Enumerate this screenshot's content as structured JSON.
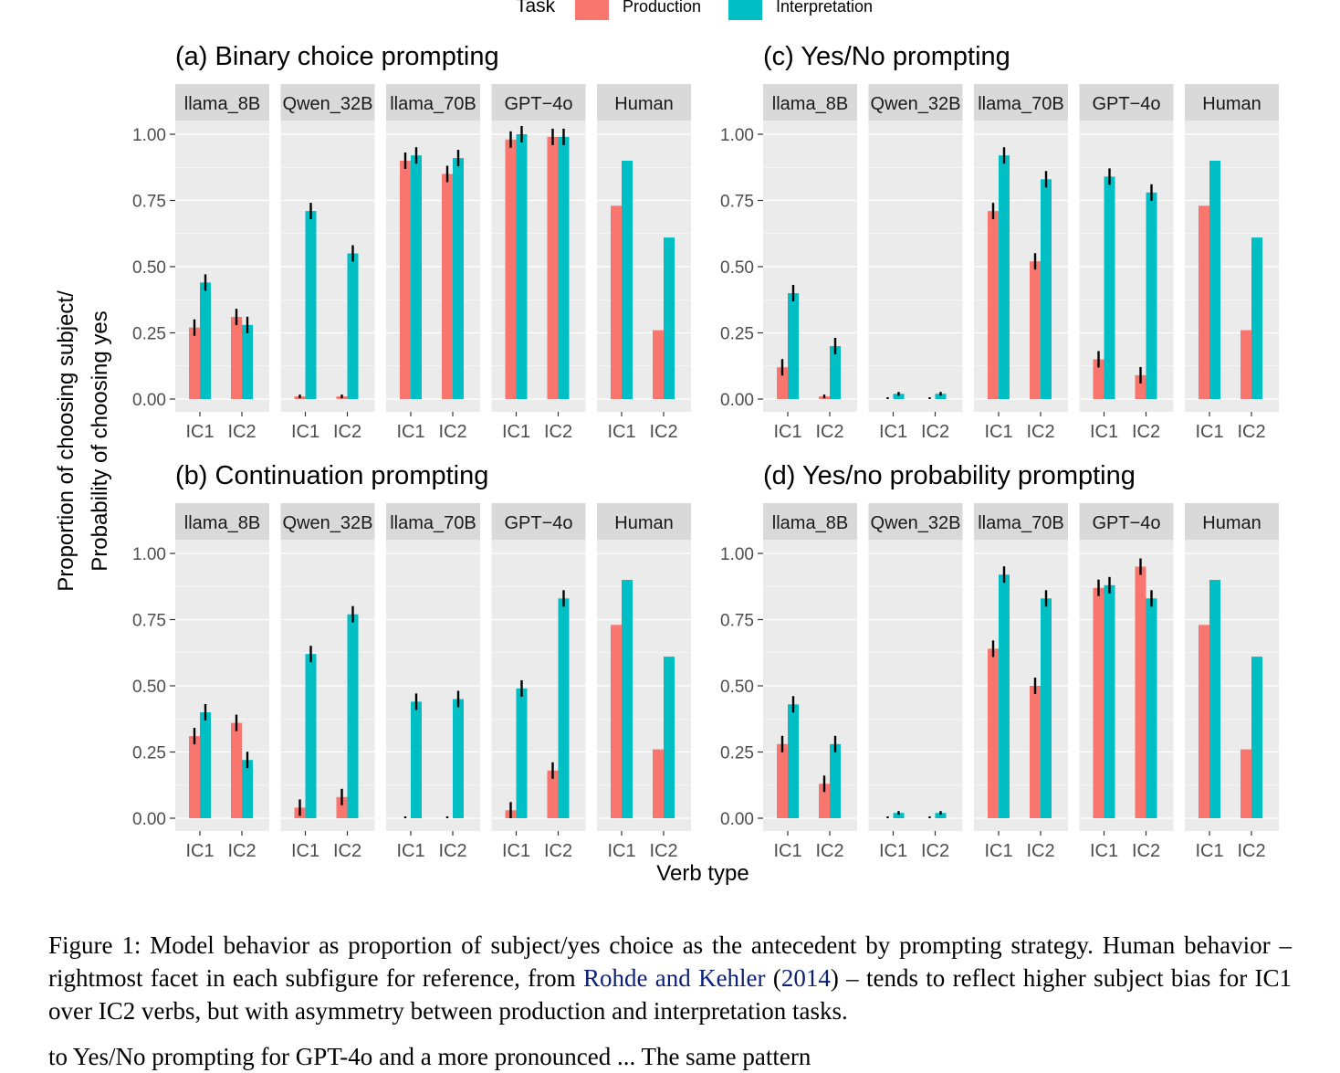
{
  "legend": {
    "title": "Task",
    "items": [
      {
        "label": "Production",
        "color": "#F8766D"
      },
      {
        "label": "Interpretation",
        "color": "#00BFC4"
      }
    ],
    "position": "top"
  },
  "axes": {
    "ylabel_line1": "Proportion of choosing subject/",
    "ylabel_line2": "Probability of choosing yes",
    "xlabel": "Verb type"
  },
  "caption": {
    "prefix": "Figure 1: Model behavior as proportion of subject/yes choice as the antecedent by prompting strategy. Human behavior – rightmost facet in each subfigure for reference, from ",
    "cite_author": "Rohde and Kehler",
    "cite_open": " (",
    "cite_year": "2014",
    "cite_close": ")",
    "suffix": " – tends to reflect higher subject bias for IC1 over IC2 verbs, but with asymmetry between production and interpretation tasks."
  },
  "continuation_text": "to Yes/No prompting for GPT-4o and a more pronounced ... The same pattern",
  "chart_data": [
    {
      "id": "a",
      "type": "bar",
      "title": "(a) Binary choice prompting",
      "facets": [
        "llama_8B",
        "Qwen_32B",
        "llama_70B",
        "GPT−4o",
        "Human"
      ],
      "categories": [
        "IC1",
        "IC2"
      ],
      "ylim": [
        0,
        1
      ],
      "yticks": [
        "0.00",
        "0.25",
        "0.50",
        "0.75",
        "1.00"
      ],
      "series": [
        {
          "name": "Production",
          "values": [
            [
              0.27,
              0.31
            ],
            [
              0.01,
              0.01
            ],
            [
              0.9,
              0.85
            ],
            [
              0.98,
              0.99
            ],
            [
              0.73,
              0.26
            ]
          ]
        },
        {
          "name": "Interpretation",
          "values": [
            [
              0.44,
              0.28
            ],
            [
              0.71,
              0.55
            ],
            [
              0.92,
              0.91
            ],
            [
              1.0,
              0.99
            ],
            [
              0.9,
              0.61
            ]
          ]
        }
      ],
      "errorbars": true
    },
    {
      "id": "c",
      "type": "bar",
      "title": "(c) Yes/No prompting",
      "facets": [
        "llama_8B",
        "Qwen_32B",
        "llama_70B",
        "GPT−4o",
        "Human"
      ],
      "categories": [
        "IC1",
        "IC2"
      ],
      "ylim": [
        0,
        1
      ],
      "yticks": [
        "0.00",
        "0.25",
        "0.50",
        "0.75",
        "1.00"
      ],
      "series": [
        {
          "name": "Production",
          "values": [
            [
              0.12,
              0.01
            ],
            [
              0.0,
              0.0
            ],
            [
              0.71,
              0.52
            ],
            [
              0.15,
              0.09
            ],
            [
              0.73,
              0.26
            ]
          ]
        },
        {
          "name": "Interpretation",
          "values": [
            [
              0.4,
              0.2
            ],
            [
              0.02,
              0.02
            ],
            [
              0.92,
              0.83
            ],
            [
              0.84,
              0.78
            ],
            [
              0.9,
              0.61
            ]
          ]
        }
      ],
      "errorbars": true
    },
    {
      "id": "b",
      "type": "bar",
      "title": "(b) Continuation prompting",
      "facets": [
        "llama_8B",
        "Qwen_32B",
        "llama_70B",
        "GPT−4o",
        "Human"
      ],
      "categories": [
        "IC1",
        "IC2"
      ],
      "ylim": [
        0,
        1
      ],
      "yticks": [
        "0.00",
        "0.25",
        "0.50",
        "0.75",
        "1.00"
      ],
      "series": [
        {
          "name": "Production",
          "values": [
            [
              0.31,
              0.36
            ],
            [
              0.04,
              0.08
            ],
            [
              0.0,
              0.0
            ],
            [
              0.03,
              0.18
            ],
            [
              0.73,
              0.26
            ]
          ]
        },
        {
          "name": "Interpretation",
          "values": [
            [
              0.4,
              0.22
            ],
            [
              0.62,
              0.77
            ],
            [
              0.44,
              0.45
            ],
            [
              0.49,
              0.83
            ],
            [
              0.9,
              0.61
            ]
          ]
        }
      ],
      "errorbars": true
    },
    {
      "id": "d",
      "type": "bar",
      "title": "(d) Yes/no probability prompting",
      "facets": [
        "llama_8B",
        "Qwen_32B",
        "llama_70B",
        "GPT−4o",
        "Human"
      ],
      "categories": [
        "IC1",
        "IC2"
      ],
      "ylim": [
        0,
        1
      ],
      "yticks": [
        "0.00",
        "0.25",
        "0.50",
        "0.75",
        "1.00"
      ],
      "series": [
        {
          "name": "Production",
          "values": [
            [
              0.28,
              0.13
            ],
            [
              0.0,
              0.0
            ],
            [
              0.64,
              0.5
            ],
            [
              0.87,
              0.95
            ],
            [
              0.73,
              0.26
            ]
          ]
        },
        {
          "name": "Interpretation",
          "values": [
            [
              0.43,
              0.28
            ],
            [
              0.02,
              0.02
            ],
            [
              0.92,
              0.83
            ],
            [
              0.88,
              0.83
            ],
            [
              0.9,
              0.61
            ]
          ]
        }
      ],
      "errorbars": true
    }
  ]
}
